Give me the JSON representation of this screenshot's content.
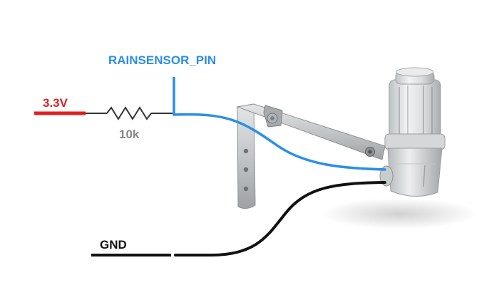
{
  "labels": {
    "signal_pin": "RAINSENSOR_PIN",
    "voltage": "3.3V",
    "resistor": "10k",
    "ground": "GND"
  },
  "colors": {
    "signal_wire": "#2b8ee8",
    "signal_label": "#2b8ee8",
    "voltage_wire": "#e02020",
    "voltage_label": "#e02020",
    "resistor_wire": "#333333",
    "resistor_label": "#888888",
    "ground_wire": "#111111",
    "ground_label": "#111111",
    "sensor_body": "#d9dadb",
    "bracket": "#b9bcbe"
  },
  "components": {
    "resistor_symbol": "zigzag-resistor",
    "sensor": "rain-sensor-device"
  }
}
